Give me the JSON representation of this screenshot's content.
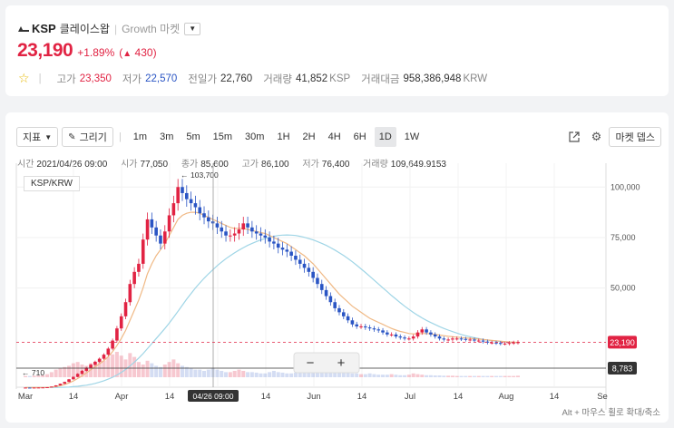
{
  "header": {
    "symbol": "KSP",
    "name": "클레이스왑",
    "market": "Growth 마켓",
    "price": "23,190",
    "change_pct": "+1.89%",
    "change_value": "430",
    "stats": [
      {
        "label": "고가",
        "value": "23,350",
        "tone": "red"
      },
      {
        "label": "저가",
        "value": "22,570",
        "tone": "blue"
      },
      {
        "label": "전일가",
        "value": "22,760",
        "tone": "gray"
      },
      {
        "label": "거래량",
        "value": "41,852",
        "unit": "KSP",
        "tone": "gray"
      },
      {
        "label": "거래대금",
        "value": "958,386,948",
        "unit": "KRW",
        "tone": "gray"
      }
    ],
    "colors": {
      "up": "#e12343",
      "down": "#2a55c4"
    }
  },
  "toolbar": {
    "indicator_label": "지표",
    "draw_label": "그리기",
    "timeframes": [
      "1m",
      "3m",
      "5m",
      "15m",
      "30m",
      "1H",
      "2H",
      "4H",
      "6H",
      "1D",
      "1W"
    ],
    "active_timeframe": "1D",
    "depth_label": "마켓 뎁스"
  },
  "ohlc": {
    "time_label": "시간",
    "time": "2021/04/26 09:00",
    "open_label": "시가",
    "open": "77,050",
    "close_label": "종가",
    "close": "85,600",
    "high_label": "고가",
    "high": "86,100",
    "low_label": "저가",
    "low": "76,400",
    "volume_label": "거래량",
    "volume": "109,649.9153"
  },
  "legend": "KSP/KRW",
  "hint": "Alt + 마우스 휠로 확대/축소",
  "zoom": {
    "minus": "−",
    "plus": "+"
  },
  "chart_data": {
    "type": "candlestick",
    "pair": "KSP/KRW",
    "y_ticks": [
      "100,000",
      "75,000",
      "50,000"
    ],
    "x_ticks": [
      "Mar",
      "14",
      "Apr",
      "14",
      "May",
      "14",
      "Jun",
      "14",
      "Jul",
      "14",
      "Aug",
      "14",
      "Se"
    ],
    "price_label": "23,190",
    "volume_label": "8,783",
    "crosshair_label": "04/26 09:00",
    "max_label": "← 103,700",
    "min_label": "← 710",
    "ylim": [
      0,
      100000
    ],
    "closes": [
      710,
      700,
      720,
      750,
      800,
      900,
      1200,
      1800,
      2600,
      3500,
      4800,
      6000,
      7500,
      9000,
      10500,
      12000,
      13500,
      15000,
      17000,
      20000,
      24000,
      30000,
      36000,
      43000,
      52000,
      58000,
      62000,
      74000,
      84000,
      80000,
      76000,
      72000,
      78000,
      86000,
      92000,
      100000,
      97000,
      94000,
      92000,
      90000,
      87000,
      85000,
      83000,
      82000,
      80000,
      78000,
      76000,
      76000,
      77000,
      79000,
      82000,
      80000,
      78000,
      77000,
      76000,
      75000,
      73000,
      72000,
      70000,
      69000,
      68000,
      66000,
      64000,
      62000,
      60000,
      58000,
      55000,
      52000,
      49000,
      46000,
      43000,
      40000,
      38000,
      36000,
      34000,
      32000,
      31000,
      31000,
      30500,
      30000,
      29500,
      29000,
      28000,
      27000,
      27000,
      26000,
      25500,
      25000,
      25000,
      26000,
      28000,
      29500,
      28000,
      27000,
      26000,
      25000,
      24500,
      24500,
      25000,
      25000,
      24800,
      24500,
      24500,
      24000,
      24000,
      23500,
      23000,
      23000,
      22800,
      22500,
      22500,
      22800,
      23000,
      23190
    ],
    "ma_fast": [
      710,
      710,
      715,
      730,
      760,
      820,
      950,
      1200,
      1600,
      2200,
      3000,
      4000,
      5200,
      6500,
      8000,
      9500,
      11000,
      12500,
      14000,
      16000,
      18500,
      21500,
      25000,
      29000,
      34000,
      39000,
      44000,
      50000,
      57000,
      62000,
      66000,
      69000,
      72000,
      76000,
      80000,
      84000,
      86000,
      87000,
      87500,
      87500,
      87000,
      86000,
      85000,
      84000,
      83000,
      82000,
      81000,
      80000,
      79500,
      79500,
      79500,
      79000,
      78500,
      78000,
      77500,
      77000,
      76000,
      75000,
      74000,
      73000,
      72000,
      70500,
      69000,
      67500,
      66000,
      64000,
      62000,
      59500,
      57000,
      54500,
      52000,
      49500,
      47000,
      45000,
      43000,
      41000,
      39500,
      38000,
      36500,
      35000,
      34000,
      33000,
      32000,
      31000,
      30000,
      29200,
      28500,
      28000,
      27500,
      27300,
      27300,
      27500,
      27500,
      27300,
      27000,
      26700,
      26400,
      26100,
      25900,
      25700,
      25500,
      25300,
      25100,
      24900,
      24700,
      24500,
      24300,
      24100,
      23900,
      23700,
      23500,
      23300,
      23200,
      23100
    ],
    "ma_slow": [
      710,
      710,
      712,
      715,
      720,
      730,
      750,
      780,
      830,
      900,
      1000,
      1150,
      1350,
      1600,
      1900,
      2300,
      2800,
      3400,
      4100,
      4900,
      5800,
      6900,
      8200,
      9700,
      11400,
      13300,
      15300,
      17500,
      20000,
      22500,
      25000,
      27500,
      30000,
      32700,
      35500,
      38500,
      41500,
      44500,
      47300,
      50000,
      52500,
      54800,
      57000,
      59000,
      61000,
      62800,
      64500,
      66000,
      67500,
      68800,
      70000,
      71100,
      72100,
      73000,
      73800,
      74500,
      75100,
      75600,
      76000,
      76200,
      76300,
      76200,
      76000,
      75600,
      75100,
      74500,
      73800,
      73000,
      72100,
      71100,
      70000,
      68800,
      67500,
      66100,
      64600,
      63000,
      61300,
      59500,
      57700,
      55800,
      53900,
      52000,
      50100,
      48200,
      46300,
      44500,
      42700,
      41000,
      39400,
      37900,
      36500,
      35200,
      34000,
      32900,
      31900,
      30900,
      30000,
      29200,
      28400,
      27700,
      27000,
      26400,
      25900,
      25400,
      25000,
      24600,
      24200,
      23900,
      23700,
      23500,
      23300,
      23200,
      23100,
      23100
    ],
    "volumes": [
      0.05,
      0.05,
      0.06,
      0.06,
      0.08,
      0.12,
      0.2,
      0.3,
      0.35,
      0.4,
      0.45,
      0.55,
      0.6,
      0.5,
      0.45,
      0.55,
      0.6,
      0.7,
      0.65,
      0.8,
      0.9,
      1.0,
      0.85,
      0.7,
      0.95,
      0.8,
      0.6,
      0.5,
      0.65,
      0.55,
      0.45,
      0.4,
      0.5,
      0.6,
      0.7,
      0.55,
      0.45,
      0.4,
      0.35,
      0.3,
      0.3,
      0.25,
      0.3,
      0.35,
      0.3,
      0.25,
      0.2,
      0.2,
      0.25,
      0.3,
      0.25,
      0.2,
      0.2,
      0.18,
      0.15,
      0.15,
      0.2,
      0.25,
      0.2,
      0.18,
      0.15,
      0.15,
      0.18,
      0.2,
      0.22,
      0.2,
      0.25,
      0.3,
      0.28,
      0.25,
      0.3,
      0.25,
      0.2,
      0.2,
      0.18,
      0.15,
      0.15,
      0.12,
      0.12,
      0.15,
      0.12,
      0.1,
      0.1,
      0.1,
      0.12,
      0.1,
      0.08,
      0.08,
      0.1,
      0.15,
      0.12,
      0.1,
      0.08,
      0.08,
      0.07,
      0.07,
      0.06,
      0.06,
      0.06,
      0.05,
      0.05,
      0.05,
      0.05,
      0.05,
      0.05,
      0.05,
      0.05,
      0.05,
      0.05,
      0.05,
      0.05,
      0.05,
      0.05,
      0.06
    ]
  }
}
